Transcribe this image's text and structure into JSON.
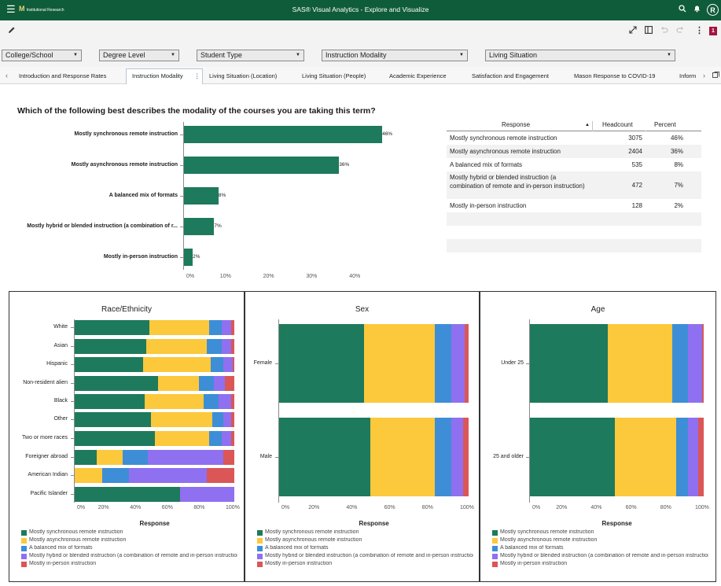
{
  "app": {
    "title": "SAS® Visual Analytics - Explore and Visualize",
    "menu_icon": "☰",
    "logo_text": "M",
    "logo_sub": "Institutional Research",
    "user_initial": "R",
    "badge": "1"
  },
  "colors": {
    "brand": "#0f5c3a",
    "sync": "#1e7a5c",
    "async": "#fcc83c",
    "balanced": "#3d8ed6",
    "hybrid": "#8f70f0",
    "inperson": "#db5656",
    "table_stripe": "#f2f2f2"
  },
  "filters": [
    {
      "label": "College/School"
    },
    {
      "label": "Degree Level"
    },
    {
      "label": "Student Type"
    },
    {
      "label": "Instruction Modality"
    },
    {
      "label": "Living Situation"
    }
  ],
  "tabs": [
    {
      "label": "Introduction and Response Rates"
    },
    {
      "label": "Instruction Modality"
    },
    {
      "label": "Living Situation (Location)"
    },
    {
      "label": "Living Situation (People)"
    },
    {
      "label": "Academic Experience"
    },
    {
      "label": "Satisfaction and Engagement"
    },
    {
      "label": "Mason Response to COVID-19"
    },
    {
      "label": "Inform"
    }
  ],
  "question_title": "Which of the following best describes the modality of the courses you are taking this term?",
  "response_table": {
    "headers": [
      "Response",
      "Headcount",
      "Percent"
    ],
    "sort_indicator": "▲",
    "rows": [
      {
        "response": "Mostly synchronous remote instruction",
        "headcount": "3075",
        "percent": "46%"
      },
      {
        "response": "Mostly asynchronous remote instruction",
        "headcount": "2404",
        "percent": "36%"
      },
      {
        "response": "A balanced mix of formats",
        "headcount": "535",
        "percent": "8%"
      },
      {
        "response": "Mostly hybrid or blended instruction (a combination of remote and in-person instruction)",
        "headcount": "472",
        "percent": "7%"
      },
      {
        "response": "Mostly in-person instruction",
        "headcount": "128",
        "percent": "2%"
      }
    ]
  },
  "legend": {
    "title": "Response",
    "items": [
      "Mostly synchronous remote instruction",
      "Mostly asynchronous remote instruction",
      "A balanced mix of formats",
      "Mostly hybrid or blended instruction (a combination of remote and in-person instruction)",
      "Mostly in-person instruction"
    ]
  },
  "chart_data": [
    {
      "type": "bar",
      "orientation": "horizontal",
      "categories": [
        "Mostly synchronous remote instruction",
        "Mostly asynchronous remote instruction",
        "A balanced mix of formats",
        "Mostly hybrid or blended instruction (a combination of r...",
        "Mostly in-person instruction"
      ],
      "values": [
        46,
        36,
        8,
        7,
        2
      ],
      "data_labels": [
        "46%",
        "36%",
        "8%",
        "7%",
        "2%"
      ],
      "x_ticks": [
        "0%",
        "10%",
        "20%",
        "30%",
        "40%"
      ],
      "xlim": [
        0,
        45
      ]
    },
    {
      "type": "bar",
      "stacked": true,
      "orientation": "horizontal",
      "title": "Race/Ethnicity",
      "categories": [
        "White",
        "Asian",
        "Hispanic",
        "Non-resident alien",
        "Black",
        "Other",
        "Two or more races",
        "Foreigner abroad",
        "American Indian",
        "Pacific Islander"
      ],
      "series": [
        {
          "name": "Mostly synchronous remote instruction",
          "values": [
            47,
            45,
            43,
            52,
            44,
            48,
            50,
            14,
            0,
            66
          ]
        },
        {
          "name": "Mostly asynchronous remote instruction",
          "values": [
            37,
            38,
            42,
            26,
            37,
            38,
            34,
            16,
            17,
            0
          ]
        },
        {
          "name": "A balanced mix of formats",
          "values": [
            8,
            9,
            8,
            9,
            9,
            7,
            8,
            16,
            17,
            0
          ]
        },
        {
          "name": "Mostly hybrid or blended instruction (a combination of remote and in-person instruction)",
          "values": [
            6,
            6,
            6,
            7,
            8,
            5,
            6,
            47,
            49,
            34
          ]
        },
        {
          "name": "Mostly in-person instruction",
          "values": [
            2,
            2,
            1,
            6,
            2,
            2,
            2,
            7,
            17,
            0
          ]
        }
      ],
      "x_ticks": [
        "0%",
        "20%",
        "40%",
        "60%",
        "80%",
        "100%"
      ],
      "xlim": [
        0,
        100
      ]
    },
    {
      "type": "bar",
      "stacked": true,
      "orientation": "horizontal",
      "title": "Sex",
      "categories": [
        "Female",
        "Male"
      ],
      "series": [
        {
          "name": "Mostly synchronous remote instruction",
          "values": [
            45,
            48
          ]
        },
        {
          "name": "Mostly asynchronous remote instruction",
          "values": [
            37,
            34
          ]
        },
        {
          "name": "A balanced mix of formats",
          "values": [
            9,
            9
          ]
        },
        {
          "name": "Mostly hybrid or blended instruction (a combination of remote and in-person instruction)",
          "values": [
            7,
            6
          ]
        },
        {
          "name": "Mostly in-person instruction",
          "values": [
            2,
            3
          ]
        }
      ],
      "x_ticks": [
        "0%",
        "20%",
        "40%",
        "60%",
        "80%",
        "100%"
      ],
      "xlim": [
        0,
        100
      ]
    },
    {
      "type": "bar",
      "stacked": true,
      "orientation": "horizontal",
      "title": "Age",
      "categories": [
        "Under 25",
        "25 and older"
      ],
      "series": [
        {
          "name": "Mostly synchronous remote instruction",
          "values": [
            45,
            49
          ]
        },
        {
          "name": "Mostly asynchronous remote instruction",
          "values": [
            37,
            35
          ]
        },
        {
          "name": "A balanced mix of formats",
          "values": [
            9,
            7
          ]
        },
        {
          "name": "Mostly hybrid or blended instruction (a combination of remote and in-person instruction)",
          "values": [
            8,
            6
          ]
        },
        {
          "name": "Mostly in-person instruction",
          "values": [
            1,
            3
          ]
        }
      ],
      "x_ticks": [
        "0%",
        "20%",
        "40%",
        "60%",
        "80%",
        "100%"
      ],
      "xlim": [
        0,
        100
      ]
    }
  ]
}
